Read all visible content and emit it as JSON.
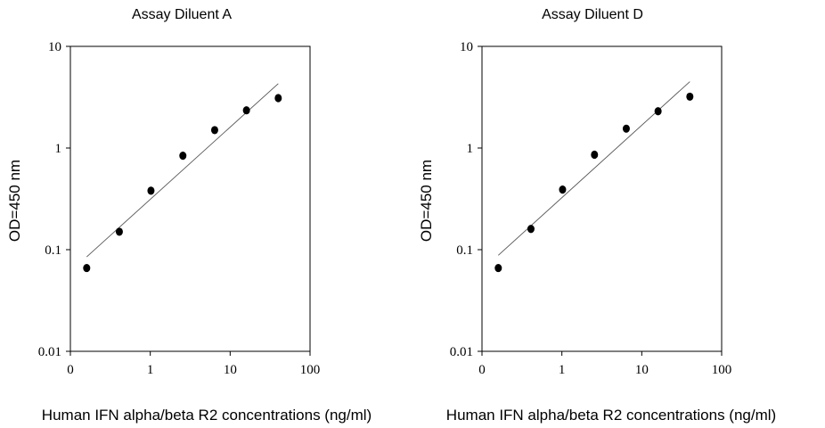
{
  "chart_data": [
    {
      "type": "scatter",
      "title": "Assay Diluent A",
      "xlabel": "Human IFN alpha/beta R2 concentrations (ng/ml)",
      "ylabel": "OD=450 nm",
      "xscale": "log",
      "yscale": "log",
      "xlim": [
        0.1,
        100
      ],
      "ylim": [
        0.01,
        10
      ],
      "xtick_labels": [
        "0",
        "1",
        "10",
        "100"
      ],
      "ytick_labels": [
        "0.01",
        "0.1",
        "1",
        "10"
      ],
      "grid": false,
      "legend": "none",
      "points": {
        "x": [
          0.16,
          0.41,
          1.02,
          2.56,
          6.4,
          16,
          40
        ],
        "y": [
          0.066,
          0.15,
          0.38,
          0.84,
          1.5,
          2.35,
          3.1
        ]
      },
      "fit_line": {
        "x": [
          0.16,
          40
        ],
        "y": [
          0.085,
          4.3
        ]
      }
    },
    {
      "type": "scatter",
      "title": "Assay Diluent D",
      "xlabel": "Human IFN alpha/beta R2 concentrations (ng/ml)",
      "ylabel": "OD=450 nm",
      "xscale": "log",
      "yscale": "log",
      "xlim": [
        0.1,
        100
      ],
      "ylim": [
        0.01,
        10
      ],
      "xtick_labels": [
        "0",
        "1",
        "10",
        "100"
      ],
      "ytick_labels": [
        "0.01",
        "0.1",
        "1",
        "10"
      ],
      "grid": false,
      "legend": "none",
      "points": {
        "x": [
          0.16,
          0.41,
          1.02,
          2.56,
          6.4,
          16,
          40
        ],
        "y": [
          0.066,
          0.16,
          0.39,
          0.86,
          1.55,
          2.3,
          3.2
        ]
      },
      "fit_line": {
        "x": [
          0.16,
          40
        ],
        "y": [
          0.088,
          4.5
        ]
      }
    }
  ]
}
